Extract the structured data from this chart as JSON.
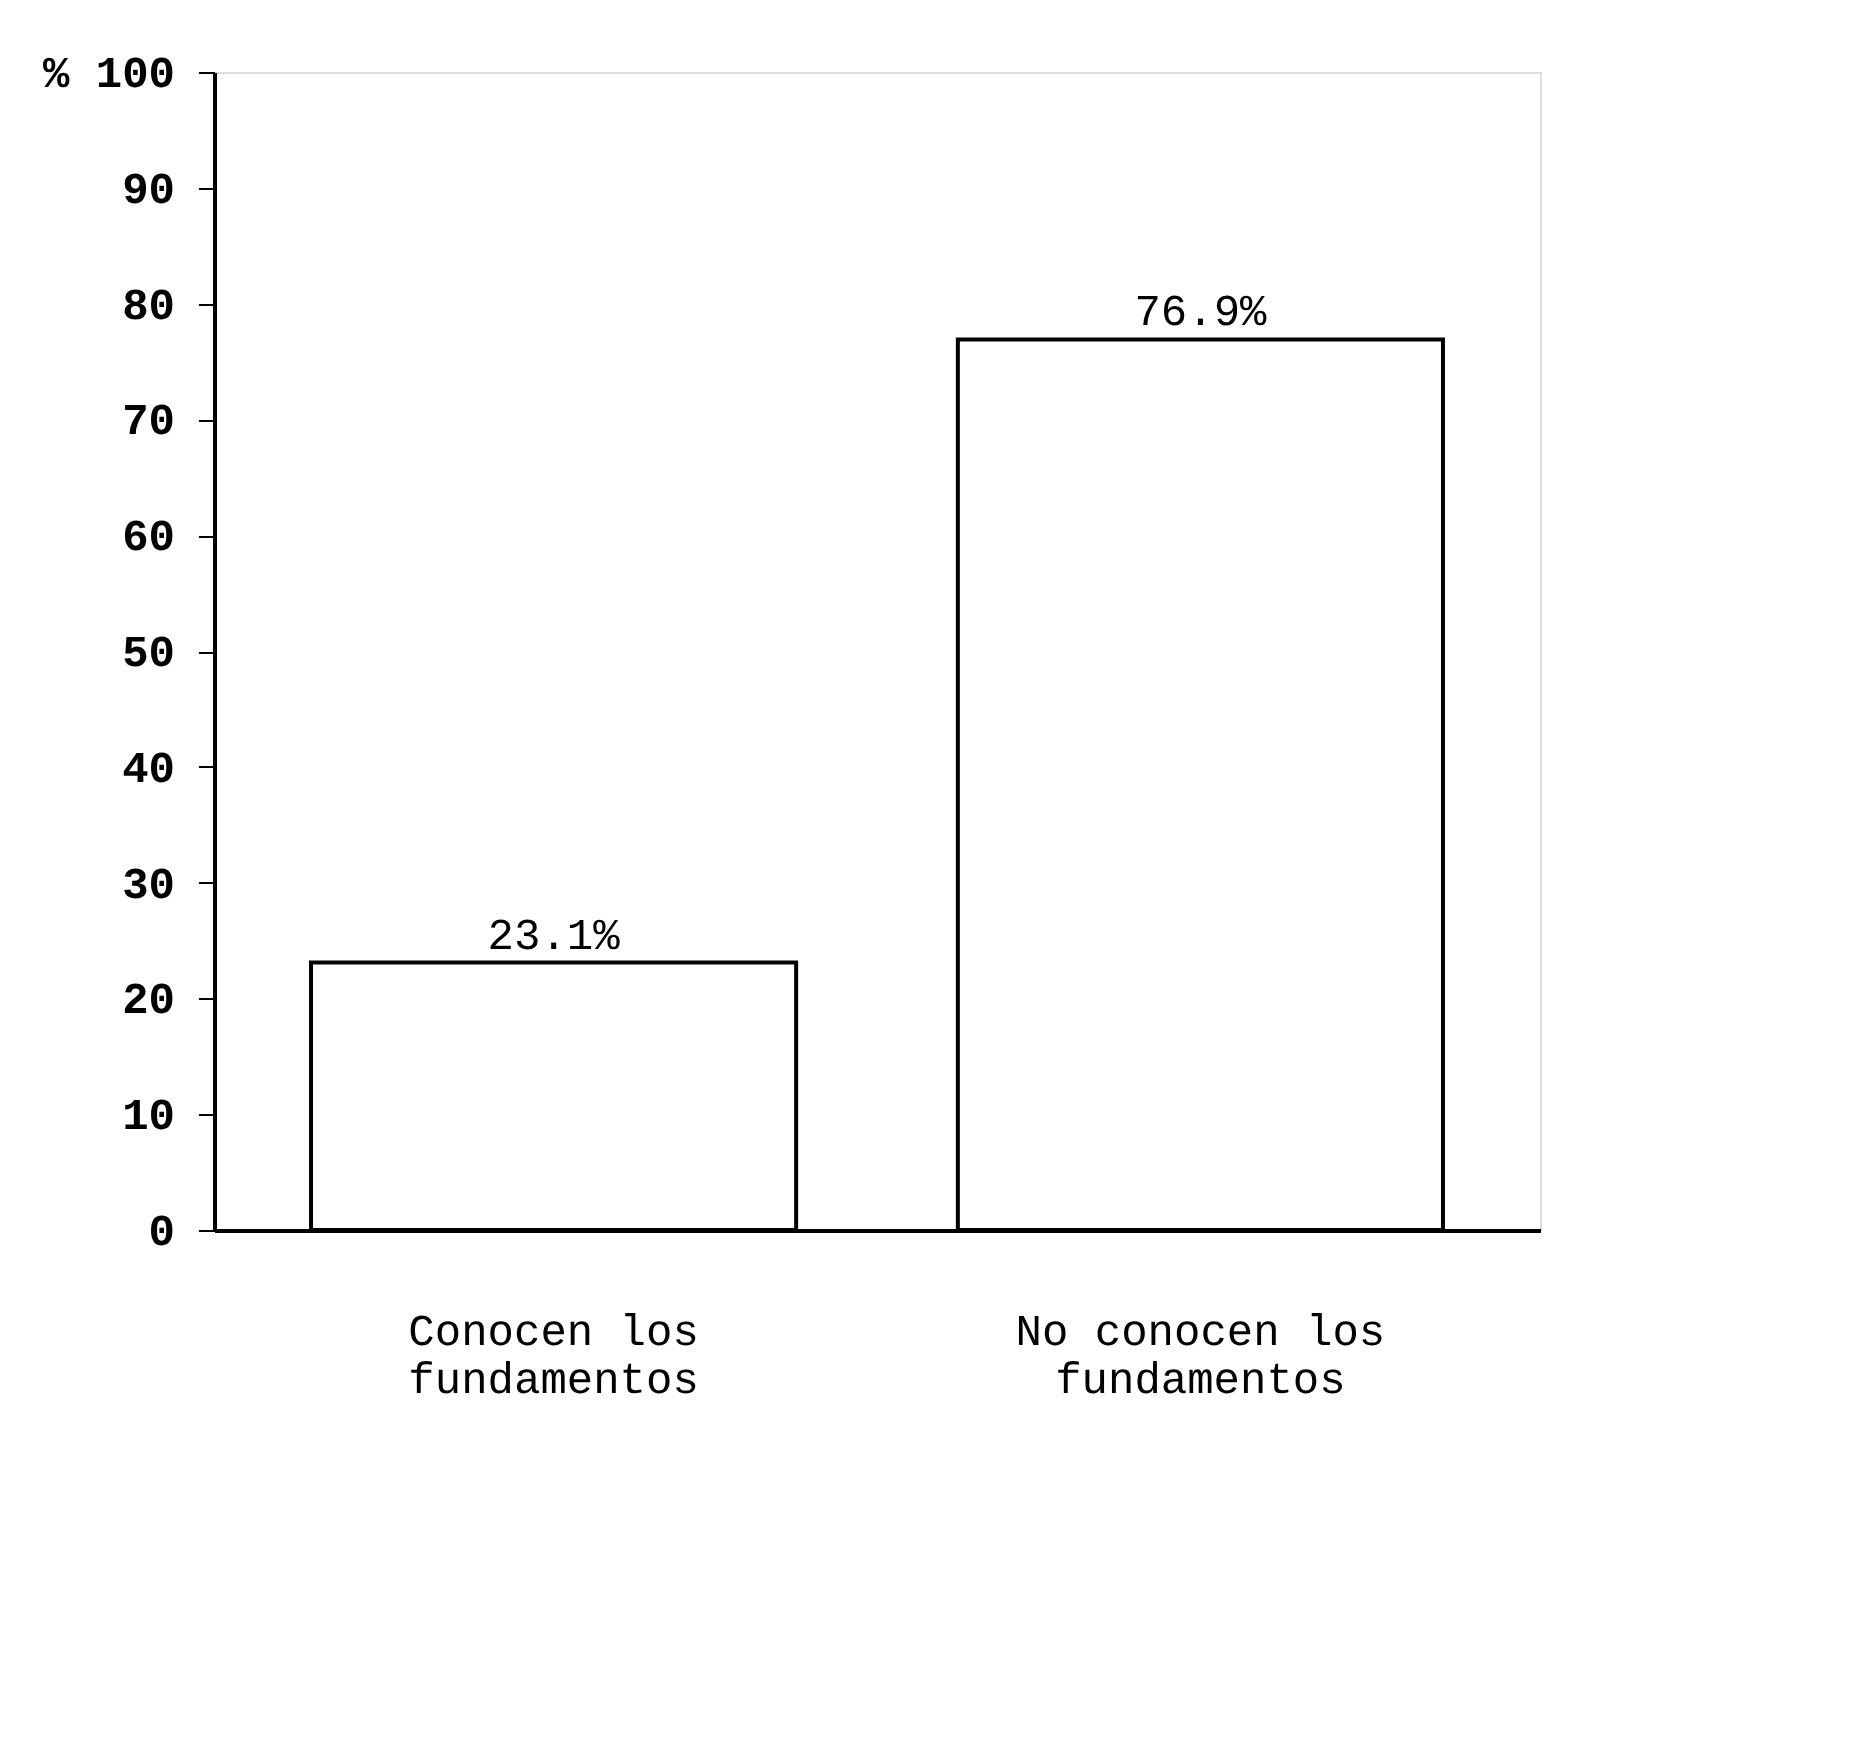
{
  "chart_data": {
    "type": "bar",
    "categories": [
      "Conocen los fundamentos",
      "No conocen los fundamentos"
    ],
    "values": [
      23.1,
      76.9
    ],
    "value_labels": [
      "23.1%",
      "76.9%"
    ],
    "color": "#ffffff",
    "ylim": [
      0,
      100
    ],
    "yticks": [
      0,
      10,
      20,
      30,
      40,
      50,
      60,
      70,
      80,
      90,
      {
        "value": 100,
        "label": "% 100"
      }
    ],
    "grid": false
  }
}
